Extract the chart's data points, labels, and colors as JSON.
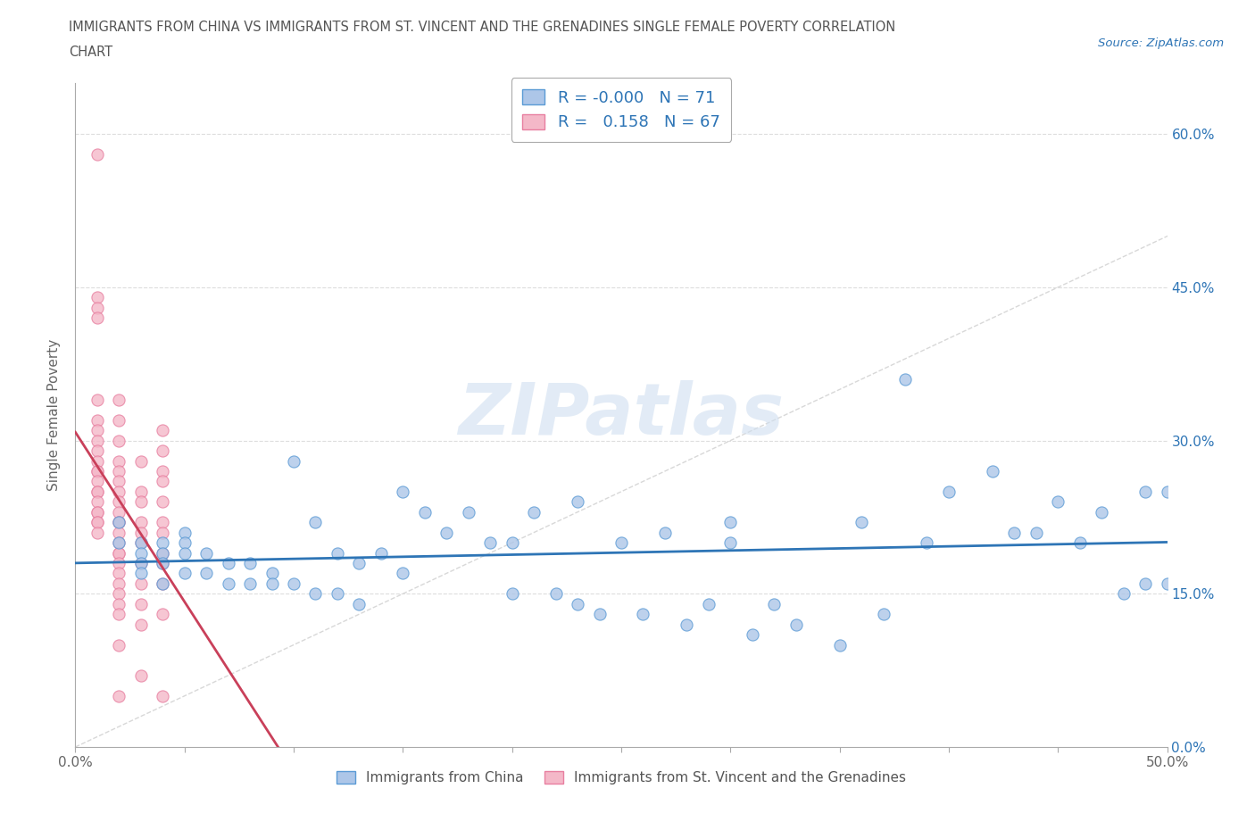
{
  "title_line1": "IMMIGRANTS FROM CHINA VS IMMIGRANTS FROM ST. VINCENT AND THE GRENADINES SINGLE FEMALE POVERTY CORRELATION",
  "title_line2": "CHART",
  "source_text": "Source: ZipAtlas.com",
  "ylabel": "Single Female Poverty",
  "legend_label_china": "Immigrants from China",
  "legend_label_svg": "Immigrants from St. Vincent and the Grenadines",
  "china_R": "-0.000",
  "china_N": 71,
  "svg_R": "0.158",
  "svg_N": 67,
  "china_color": "#adc6e8",
  "china_edge": "#5b9bd5",
  "svg_color": "#f4b8c8",
  "svg_edge": "#e87fa0",
  "trend_china_color": "#2e75b6",
  "trend_svg_color": "#c9405a",
  "diagonal_color": "#d8d8d8",
  "background_color": "#ffffff",
  "xlim": [
    0.0,
    0.5
  ],
  "ylim": [
    0.0,
    0.65
  ],
  "xticks": [
    0.0,
    0.05,
    0.1,
    0.15,
    0.2,
    0.25,
    0.3,
    0.35,
    0.4,
    0.45,
    0.5
  ],
  "ytick_vals": [
    0.0,
    0.15,
    0.3,
    0.45,
    0.6
  ],
  "ytick_labels": [
    "0.0%",
    "15.0%",
    "30.0%",
    "45.0%",
    "60.0%"
  ],
  "xtick_labels": [
    "0.0%",
    "",
    "",
    "",
    "",
    "",
    "",
    "",
    "",
    "",
    "50.0%"
  ],
  "china_x": [
    0.02,
    0.02,
    0.03,
    0.03,
    0.03,
    0.03,
    0.04,
    0.04,
    0.04,
    0.04,
    0.05,
    0.05,
    0.05,
    0.05,
    0.06,
    0.06,
    0.07,
    0.07,
    0.08,
    0.08,
    0.09,
    0.09,
    0.1,
    0.1,
    0.11,
    0.11,
    0.12,
    0.12,
    0.13,
    0.13,
    0.14,
    0.15,
    0.15,
    0.16,
    0.17,
    0.18,
    0.19,
    0.2,
    0.2,
    0.21,
    0.22,
    0.23,
    0.23,
    0.24,
    0.25,
    0.26,
    0.27,
    0.28,
    0.29,
    0.3,
    0.3,
    0.31,
    0.32,
    0.33,
    0.35,
    0.36,
    0.37,
    0.38,
    0.39,
    0.4,
    0.42,
    0.43,
    0.44,
    0.45,
    0.46,
    0.47,
    0.48,
    0.49,
    0.49,
    0.5,
    0.5
  ],
  "china_y": [
    0.22,
    0.2,
    0.2,
    0.19,
    0.18,
    0.17,
    0.2,
    0.19,
    0.18,
    0.16,
    0.21,
    0.2,
    0.19,
    0.17,
    0.19,
    0.17,
    0.18,
    0.16,
    0.18,
    0.16,
    0.17,
    0.16,
    0.28,
    0.16,
    0.22,
    0.15,
    0.19,
    0.15,
    0.18,
    0.14,
    0.19,
    0.25,
    0.17,
    0.23,
    0.21,
    0.23,
    0.2,
    0.2,
    0.15,
    0.23,
    0.15,
    0.24,
    0.14,
    0.13,
    0.2,
    0.13,
    0.21,
    0.12,
    0.14,
    0.22,
    0.2,
    0.11,
    0.14,
    0.12,
    0.1,
    0.22,
    0.13,
    0.36,
    0.2,
    0.25,
    0.27,
    0.21,
    0.21,
    0.24,
    0.2,
    0.23,
    0.15,
    0.25,
    0.16,
    0.16,
    0.25
  ],
  "svg_x": [
    0.01,
    0.01,
    0.01,
    0.01,
    0.01,
    0.01,
    0.01,
    0.01,
    0.01,
    0.01,
    0.01,
    0.01,
    0.01,
    0.01,
    0.01,
    0.01,
    0.01,
    0.01,
    0.01,
    0.01,
    0.01,
    0.02,
    0.02,
    0.02,
    0.02,
    0.02,
    0.02,
    0.02,
    0.02,
    0.02,
    0.02,
    0.02,
    0.02,
    0.02,
    0.02,
    0.02,
    0.02,
    0.02,
    0.02,
    0.02,
    0.02,
    0.02,
    0.02,
    0.02,
    0.03,
    0.03,
    0.03,
    0.03,
    0.03,
    0.03,
    0.03,
    0.03,
    0.03,
    0.03,
    0.03,
    0.04,
    0.04,
    0.04,
    0.04,
    0.04,
    0.04,
    0.04,
    0.04,
    0.04,
    0.04,
    0.04,
    0.04
  ],
  "svg_y": [
    0.58,
    0.44,
    0.43,
    0.42,
    0.34,
    0.32,
    0.31,
    0.3,
    0.29,
    0.28,
    0.27,
    0.27,
    0.26,
    0.25,
    0.25,
    0.24,
    0.23,
    0.23,
    0.22,
    0.22,
    0.21,
    0.34,
    0.32,
    0.3,
    0.28,
    0.27,
    0.26,
    0.25,
    0.24,
    0.23,
    0.22,
    0.22,
    0.21,
    0.2,
    0.19,
    0.19,
    0.18,
    0.17,
    0.16,
    0.15,
    0.14,
    0.13,
    0.1,
    0.05,
    0.28,
    0.25,
    0.24,
    0.22,
    0.21,
    0.2,
    0.18,
    0.16,
    0.14,
    0.12,
    0.07,
    0.31,
    0.29,
    0.27,
    0.26,
    0.24,
    0.22,
    0.21,
    0.19,
    0.18,
    0.16,
    0.13,
    0.05
  ],
  "watermark_text": "ZIPatlas",
  "watermark_color": "#d0dff0",
  "watermark_alpha": 0.6
}
